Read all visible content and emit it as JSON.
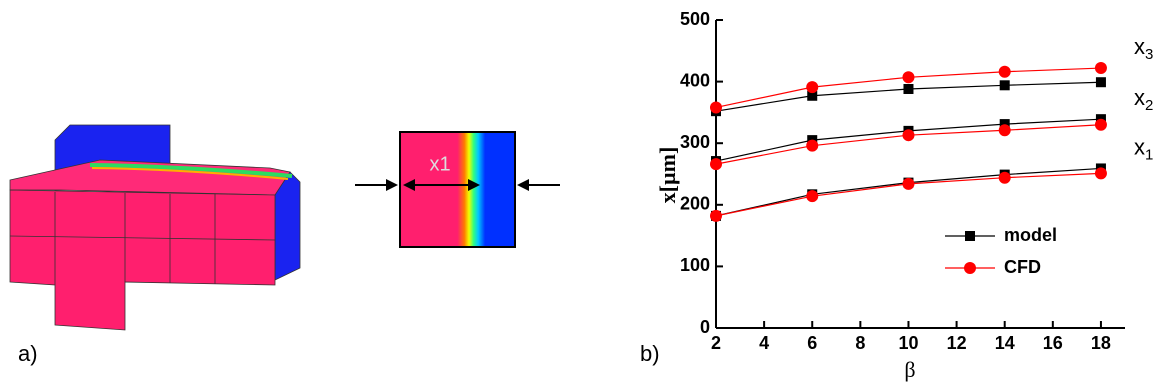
{
  "panel_a": {
    "label": "a)",
    "dimension_label": "x1"
  },
  "chart_data": {
    "type": "line",
    "panel_label": "b)",
    "x_label": "β",
    "y_label": "x[µm]",
    "xlim": [
      2,
      19
    ],
    "xticks": [
      2,
      4,
      6,
      8,
      10,
      12,
      14,
      16,
      18
    ],
    "ylim": [
      0,
      500
    ],
    "yticks": [
      0,
      100,
      200,
      300,
      400,
      500
    ],
    "x": [
      2,
      6,
      10,
      14,
      18
    ],
    "curve_labels": [
      {
        "text": "x",
        "sub": "1"
      },
      {
        "text": "x",
        "sub": "2"
      },
      {
        "text": "x",
        "sub": "3"
      }
    ],
    "series": [
      {
        "name": "model",
        "color": "#000000",
        "marker": "square",
        "curves": [
          [
            182,
            217,
            236,
            249,
            259
          ],
          [
            271,
            305,
            320,
            331,
            339
          ],
          [
            352,
            377,
            388,
            394,
            399
          ]
        ]
      },
      {
        "name": "CFD",
        "color": "#ff0000",
        "marker": "circle",
        "curves": [
          [
            182,
            214,
            234,
            244,
            251
          ],
          [
            266,
            296,
            313,
            321,
            330
          ],
          [
            358,
            391,
            407,
            416,
            422
          ]
        ]
      }
    ]
  }
}
